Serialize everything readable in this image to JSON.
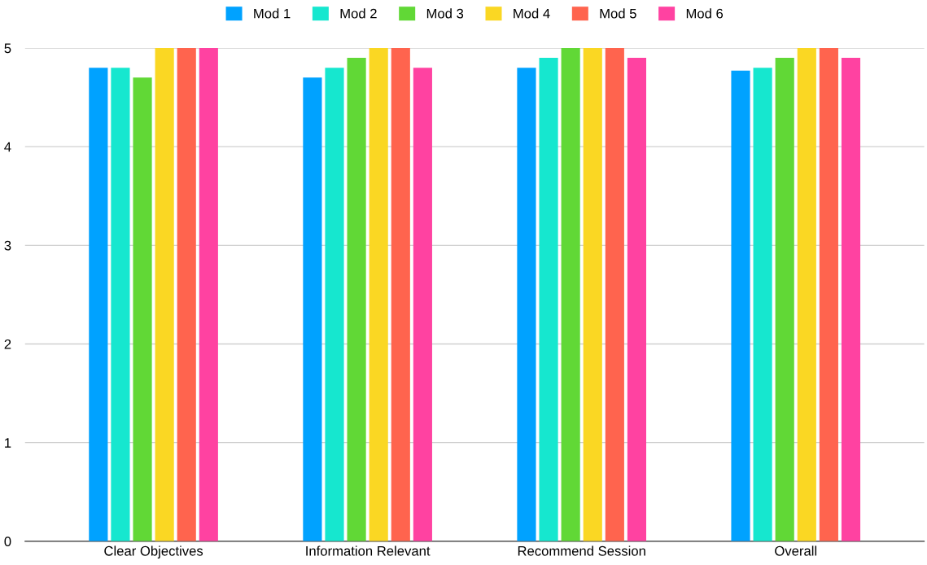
{
  "chart_data": {
    "type": "bar",
    "categories": [
      "Clear Objectives",
      "Information Relevant",
      "Recommend Session",
      "Overall"
    ],
    "series": [
      {
        "name": "Mod 1",
        "color": "#00a2ff",
        "values": [
          4.8,
          4.7,
          4.8,
          4.77
        ]
      },
      {
        "name": "Mod 2",
        "color": "#16e7cf",
        "values": [
          4.8,
          4.8,
          4.9,
          4.8
        ]
      },
      {
        "name": "Mod 3",
        "color": "#61d836",
        "values": [
          4.7,
          4.9,
          5,
          4.9
        ]
      },
      {
        "name": "Mod 4",
        "color": "#fad723",
        "values": [
          5,
          5,
          5,
          5
        ]
      },
      {
        "name": "Mod 5",
        "color": "#ff644e",
        "values": [
          5,
          5,
          5,
          5
        ]
      },
      {
        "name": "Mod 6",
        "color": "#ff42a1",
        "values": [
          5,
          4.8,
          4.9,
          4.9
        ]
      }
    ],
    "ylim": [
      0,
      5
    ],
    "yticks": [
      0,
      1,
      2,
      3,
      4,
      5
    ],
    "grid": "y",
    "legend": "top"
  }
}
